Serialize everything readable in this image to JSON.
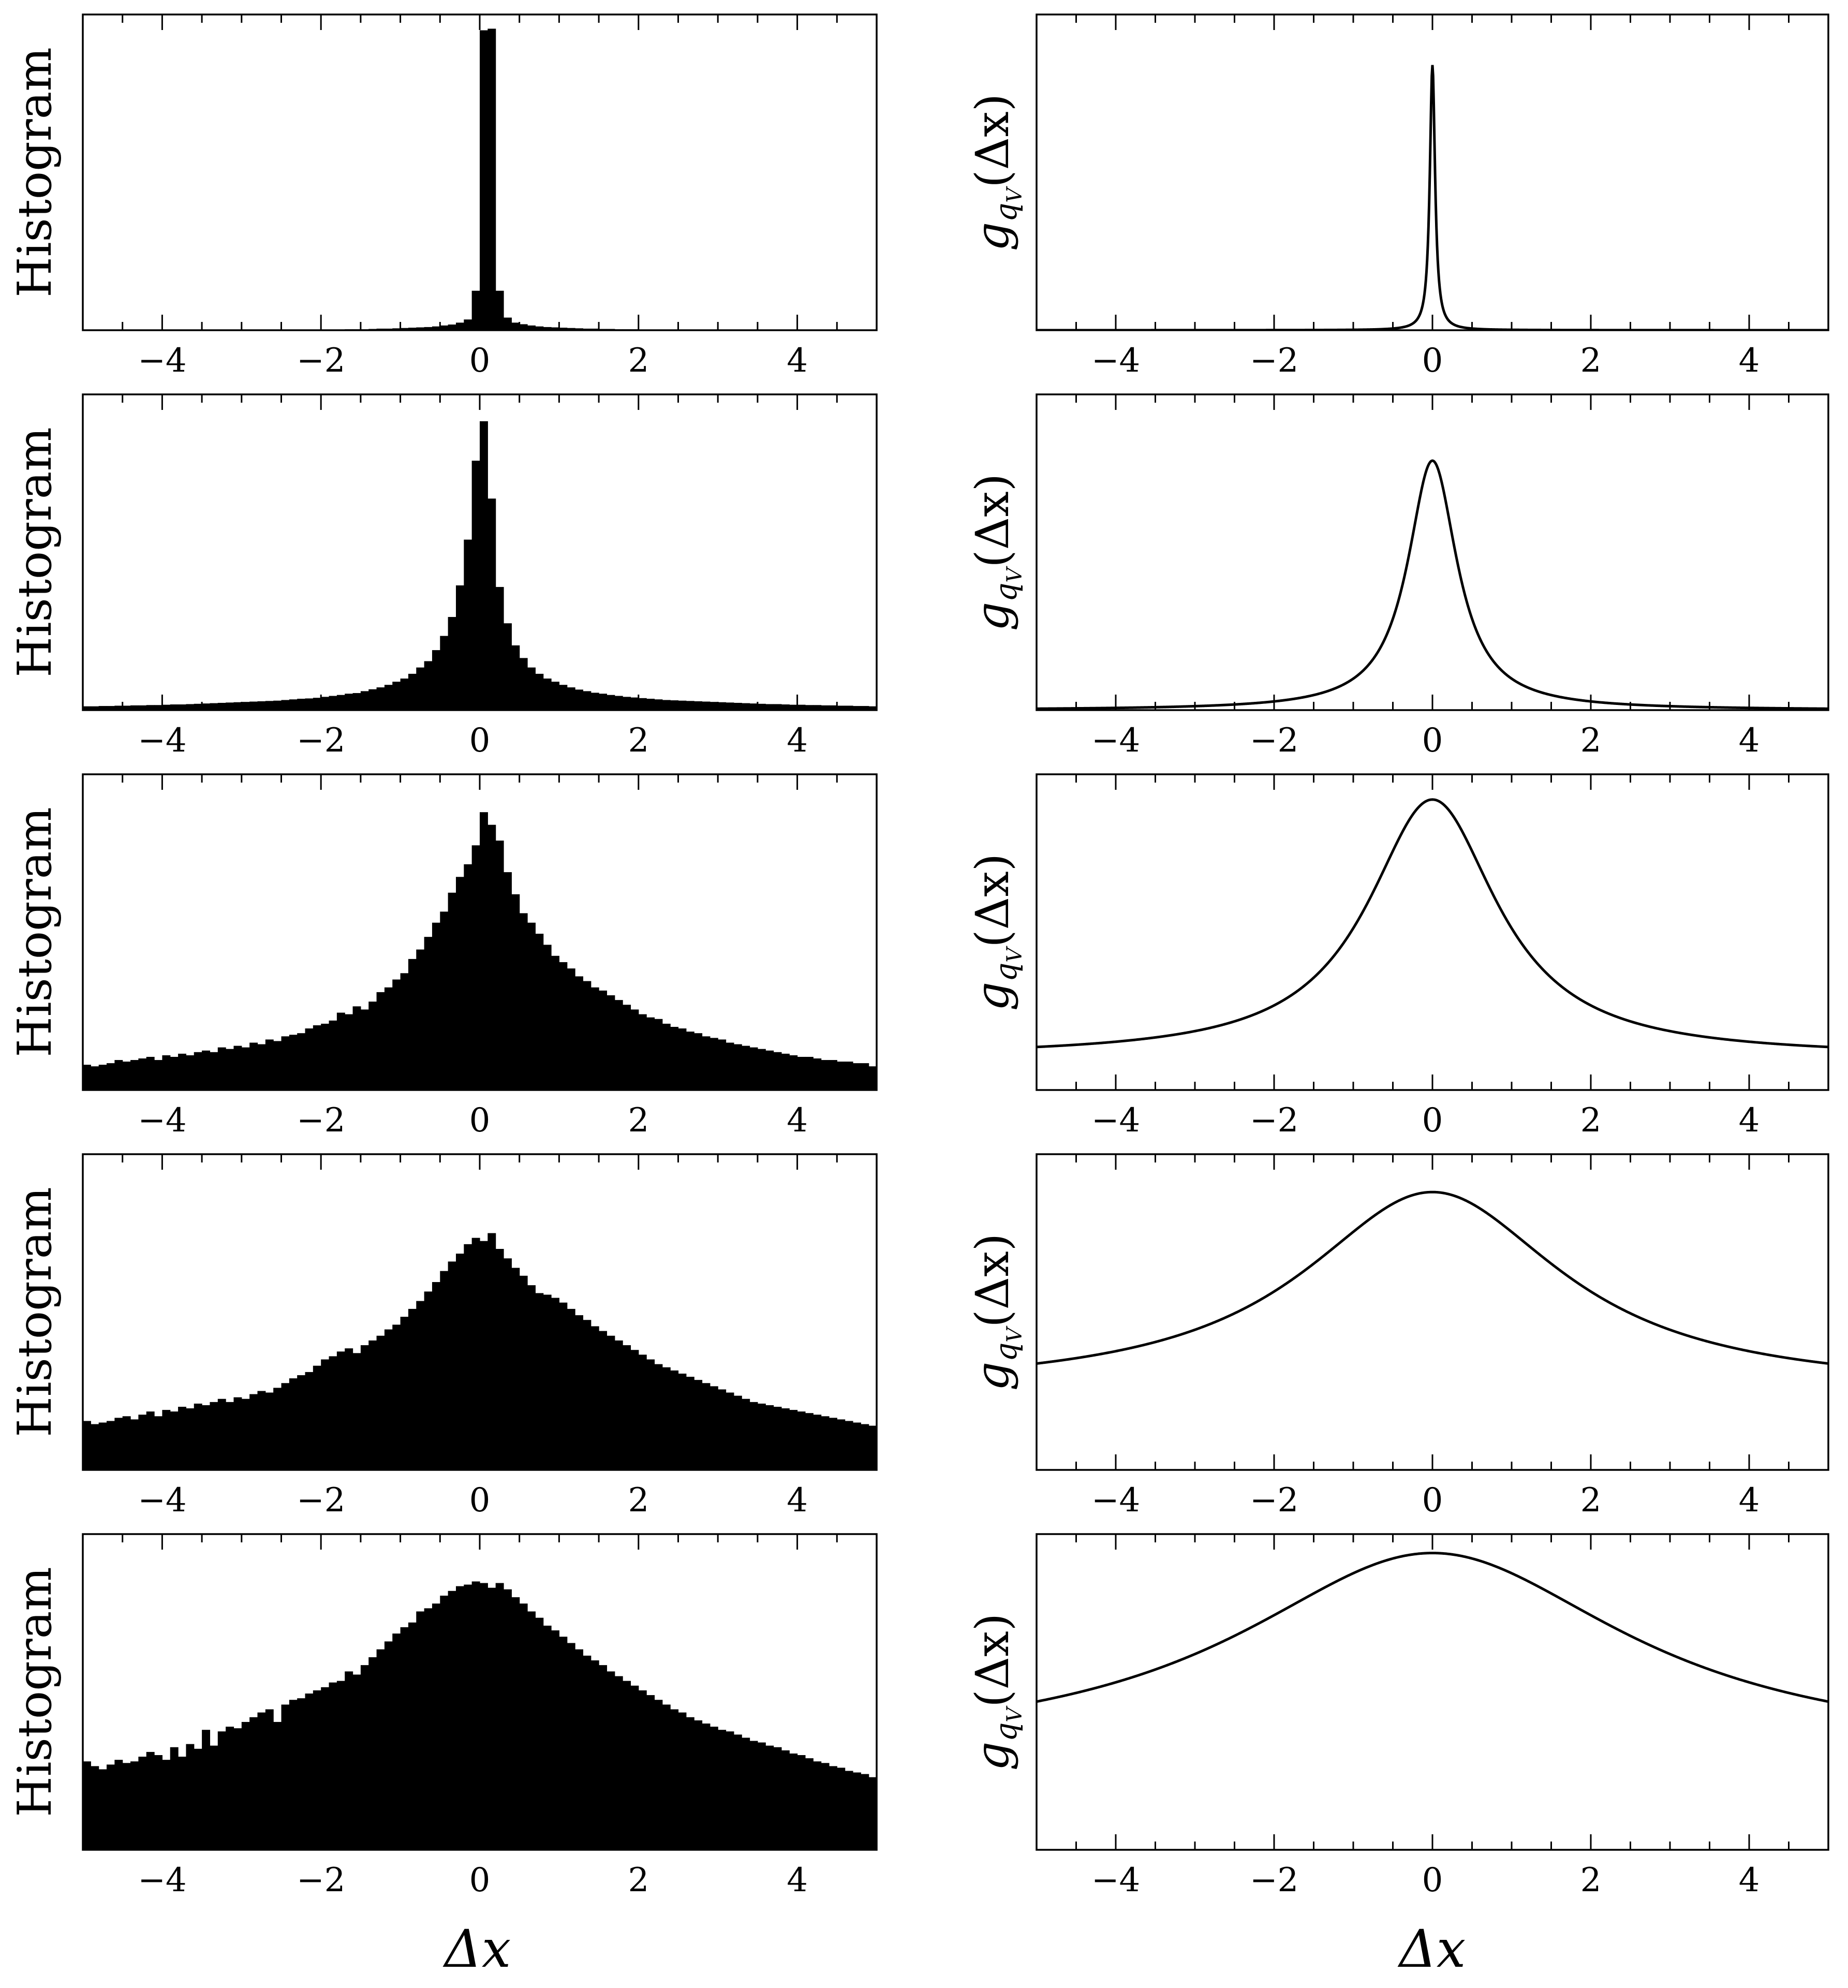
{
  "colors": {
    "foreground": "#000000",
    "background": "#ffffff"
  },
  "chart_data": [
    {
      "type": "bar",
      "panel": "left-1",
      "ylabel": "Histogram",
      "xlim": [
        -5,
        5
      ],
      "xticks": [
        -4,
        -2,
        0,
        2,
        4
      ],
      "xtick_labels": [
        "−4",
        "−2",
        "0",
        "2",
        "4"
      ],
      "bins": 100,
      "y_ticks_labeled": false,
      "values": [
        0,
        0,
        0,
        0,
        0,
        0,
        0,
        0,
        0,
        0,
        0,
        0,
        0,
        0,
        0,
        0,
        0,
        0,
        0,
        0,
        0,
        0,
        0,
        0,
        0,
        0,
        0,
        0,
        0.1,
        0.1,
        0.2,
        0.2,
        0.2,
        0.3,
        0.3,
        0.3,
        0.4,
        0.5,
        0.5,
        0.6,
        0.7,
        0.8,
        0.9,
        1.0,
        1.2,
        1.5,
        1.8,
        2.4,
        3.4,
        12.5,
        95,
        95.5,
        12.5,
        4.0,
        2.4,
        1.9,
        1.5,
        1.2,
        1.0,
        0.9,
        0.8,
        0.7,
        0.6,
        0.5,
        0.5,
        0.4,
        0.4,
        0.3,
        0.3,
        0.3,
        0.2,
        0.2,
        0.2,
        0.1,
        0.1,
        0.1,
        0,
        0,
        0,
        0,
        0,
        0,
        0,
        0,
        0,
        0,
        0,
        0,
        0,
        0,
        0,
        0,
        0,
        0,
        0,
        0,
        0,
        0,
        0,
        0
      ]
    },
    {
      "type": "line",
      "panel": "right-1",
      "ylabel": "g_{q_V}(Δx)",
      "xlim": [
        -5,
        5
      ],
      "xticks": [
        -4,
        -2,
        0,
        2,
        4
      ],
      "xtick_labels": [
        "−4",
        "−2",
        "0",
        "2",
        "4"
      ],
      "y_ticks_labeled": false,
      "curve": {
        "shape": "lorentzian-like",
        "center": 0,
        "half_width": 0.04,
        "peak": 84,
        "baseline": 0
      }
    },
    {
      "type": "bar",
      "panel": "left-2",
      "ylabel": "Histogram",
      "xlim": [
        -5,
        5
      ],
      "xticks": [
        -4,
        -2,
        0,
        2,
        4
      ],
      "xtick_labels": [
        "−4",
        "−2",
        "0",
        "2",
        "4"
      ],
      "bins": 100,
      "y_ticks_labeled": false,
      "values": [
        1.2,
        1.2,
        1.3,
        1.3,
        1.4,
        1.4,
        1.5,
        1.5,
        1.6,
        1.6,
        1.7,
        1.8,
        1.8,
        1.9,
        2.0,
        2.1,
        2.2,
        2.3,
        2.4,
        2.5,
        2.6,
        2.7,
        2.8,
        2.9,
        3.0,
        3.2,
        3.4,
        3.6,
        3.7,
        3.9,
        4.2,
        4.5,
        4.8,
        5.2,
        5.4,
        6.0,
        6.6,
        7.2,
        8.0,
        9.0,
        10.0,
        11.5,
        13.5,
        15.5,
        19.0,
        23.5,
        29.5,
        39.5,
        54.0,
        79.0,
        91.5,
        67.0,
        39.0,
        27.5,
        20.5,
        16.5,
        13.5,
        11.5,
        10.0,
        9.0,
        8.0,
        7.2,
        6.5,
        6.0,
        5.5,
        5.2,
        4.8,
        4.5,
        4.2,
        4.0,
        3.8,
        3.6,
        3.4,
        3.2,
        3.1,
        3.0,
        2.9,
        2.8,
        2.7,
        2.6,
        2.5,
        2.4,
        2.3,
        2.2,
        2.1,
        2.0,
        1.9,
        1.9,
        1.8,
        1.7,
        1.7,
        1.6,
        1.6,
        1.5,
        1.5,
        1.4,
        1.4,
        1.3,
        1.3,
        1.2
      ]
    },
    {
      "type": "line",
      "panel": "right-2",
      "ylabel": "g_{q_V}(Δx)",
      "xlim": [
        -5,
        5
      ],
      "xticks": [
        -4,
        -2,
        0,
        2,
        4
      ],
      "xtick_labels": [
        "−4",
        "−2",
        "0",
        "2",
        "4"
      ],
      "y_ticks_labeled": false,
      "curve": {
        "shape": "lorentzian-like",
        "center": 0,
        "half_width": 0.38,
        "peak": 79,
        "baseline": 0
      }
    },
    {
      "type": "bar",
      "panel": "left-3",
      "ylabel": "Histogram",
      "xlim": [
        -5,
        5
      ],
      "xticks": [
        -4,
        -2,
        0,
        2,
        4
      ],
      "xtick_labels": [
        "−4",
        "−2",
        "0",
        "2",
        "4"
      ],
      "bins": 100,
      "y_ticks_labeled": false,
      "values": [
        8.0,
        7.5,
        8.0,
        8.5,
        9.5,
        9.0,
        9.5,
        10.0,
        10.5,
        9.5,
        11.0,
        10.5,
        11.5,
        11.0,
        12.0,
        12.5,
        12.0,
        13.5,
        13.0,
        14.0,
        13.5,
        15.0,
        14.5,
        16.0,
        15.5,
        17.0,
        17.5,
        18.0,
        19.5,
        20.5,
        21.0,
        22.0,
        24.5,
        24.0,
        26.5,
        25.5,
        28.0,
        31.0,
        32.5,
        35.0,
        37.0,
        41.5,
        44.5,
        48.5,
        53.0,
        56.5,
        62.5,
        67.5,
        71.5,
        77.5,
        88.0,
        84.0,
        79.0,
        69.0,
        62.0,
        56.0,
        53.0,
        49.5,
        46.0,
        42.5,
        40.5,
        38.5,
        36.0,
        34.5,
        32.5,
        31.5,
        30.0,
        28.5,
        27.0,
        25.5,
        24.0,
        23.0,
        22.5,
        21.0,
        20.0,
        19.5,
        18.5,
        18.0,
        17.0,
        16.5,
        16.0,
        15.0,
        14.5,
        14.0,
        13.5,
        13.0,
        12.5,
        12.0,
        11.5,
        11.0,
        10.5,
        10.5,
        10.0,
        9.5,
        9.5,
        9.0,
        9.0,
        8.5,
        8.5,
        7.5
      ]
    },
    {
      "type": "line",
      "panel": "right-3",
      "ylabel": "g_{q_V}(Δx)",
      "xlim": [
        -5,
        5
      ],
      "xticks": [
        -4,
        -2,
        0,
        2,
        4
      ],
      "xtick_labels": [
        "−4",
        "−2",
        "0",
        "2",
        "4"
      ],
      "y_ticks_labeled": false,
      "curve": {
        "shape": "lorentzian-like",
        "center": 0,
        "half_width": 1.0,
        "peak": 92,
        "baseline": 10.5
      }
    },
    {
      "type": "bar",
      "panel": "left-4",
      "ylabel": "Histogram",
      "xlim": [
        -5,
        5
      ],
      "xticks": [
        -4,
        -2,
        0,
        2,
        4
      ],
      "xtick_labels": [
        "−4",
        "−2",
        "0",
        "2",
        "4"
      ],
      "bins": 100,
      "y_ticks_labeled": false,
      "values": [
        15.5,
        14.5,
        15.0,
        15.5,
        16.5,
        17.0,
        16.0,
        17.5,
        18.5,
        17.0,
        19.0,
        18.5,
        20.0,
        19.5,
        21.0,
        20.5,
        21.5,
        22.5,
        21.5,
        23.0,
        22.5,
        24.0,
        25.0,
        24.5,
        26.0,
        27.5,
        29.0,
        30.0,
        31.0,
        33.0,
        35.0,
        36.0,
        37.5,
        38.5,
        37.0,
        39.5,
        41.0,
        42.5,
        44.5,
        46.0,
        48.5,
        51.0,
        53.5,
        56.5,
        59.5,
        63.0,
        66.0,
        68.5,
        71.5,
        73.5,
        72.5,
        75.0,
        70.0,
        67.0,
        64.0,
        61.5,
        58.5,
        56.0,
        55.5,
        54.5,
        53.0,
        51.0,
        49.0,
        47.5,
        45.5,
        44.0,
        42.5,
        41.0,
        39.5,
        38.0,
        36.5,
        35.0,
        33.5,
        32.5,
        31.5,
        30.5,
        29.5,
        28.5,
        27.5,
        26.5,
        25.5,
        24.5,
        23.5,
        22.5,
        21.5,
        21.0,
        20.5,
        20.0,
        19.5,
        19.0,
        18.5,
        18.0,
        17.5,
        17.0,
        16.5,
        16.0,
        15.5,
        15.0,
        14.5,
        14.0
      ]
    },
    {
      "type": "line",
      "panel": "right-4",
      "ylabel": "g_{q_V}(Δx)",
      "xlim": [
        -5,
        5
      ],
      "xticks": [
        -4,
        -2,
        0,
        2,
        4
      ],
      "xtick_labels": [
        "−4",
        "−2",
        "0",
        "2",
        "4"
      ],
      "y_ticks_labeled": false,
      "curve": {
        "shape": "lorentzian-like",
        "center": 0,
        "half_width": 2.0,
        "peak": 88,
        "baseline": 25
      }
    },
    {
      "type": "bar",
      "panel": "left-5",
      "ylabel": "Histogram",
      "xlim": [
        -5,
        5
      ],
      "xticks": [
        -4,
        -2,
        0,
        2,
        4
      ],
      "xtick_labels": [
        "−4",
        "−2",
        "0",
        "2",
        "4"
      ],
      "bins": 100,
      "y_ticks_labeled": false,
      "values": [
        28.0,
        26.5,
        25.5,
        27.0,
        28.5,
        27.5,
        28.0,
        29.5,
        31.0,
        30.0,
        28.5,
        32.5,
        29.5,
        33.5,
        32.0,
        38.0,
        33.0,
        37.5,
        39.0,
        38.5,
        40.5,
        42.0,
        43.5,
        44.5,
        40.5,
        46.0,
        47.5,
        48.0,
        49.5,
        50.5,
        51.5,
        53.0,
        53.5,
        56.5,
        55.5,
        58.5,
        61.0,
        63.5,
        66.0,
        68.5,
        70.5,
        72.0,
        75.5,
        76.5,
        78.0,
        80.5,
        82.0,
        83.5,
        84.0,
        85.0,
        84.5,
        83.0,
        84.5,
        82.5,
        80.0,
        78.0,
        75.5,
        73.5,
        71.0,
        69.5,
        67.5,
        65.5,
        63.5,
        61.5,
        60.0,
        58.5,
        56.5,
        55.0,
        53.5,
        52.0,
        50.5,
        49.0,
        47.5,
        46.0,
        44.5,
        43.5,
        42.0,
        41.0,
        40.0,
        39.0,
        38.0,
        37.5,
        36.5,
        35.5,
        34.5,
        34.0,
        33.0,
        32.5,
        31.5,
        30.5,
        30.0,
        29.0,
        28.0,
        27.5,
        26.5,
        26.0,
        25.0,
        24.5,
        24.0,
        23.0
      ]
    },
    {
      "type": "line",
      "panel": "right-5",
      "ylabel": "g_{q_V}(Δx)",
      "xlim": [
        -5,
        5
      ],
      "xticks": [
        -4,
        -2,
        0,
        2,
        4
      ],
      "xtick_labels": [
        "−4",
        "−2",
        "0",
        "2",
        "4"
      ],
      "y_ticks_labeled": false,
      "curve": {
        "shape": "lorentzian-like",
        "center": 0,
        "half_width": 3.0,
        "peak": 94,
        "baseline": 30
      }
    }
  ],
  "shared": {
    "xlabel": "Δx",
    "left_ylabel": "Histogram",
    "right_ylabel_main": "g",
    "right_ylabel_sub": "q",
    "right_ylabel_subsub": "V",
    "right_ylabel_arg": "(Δx)"
  }
}
